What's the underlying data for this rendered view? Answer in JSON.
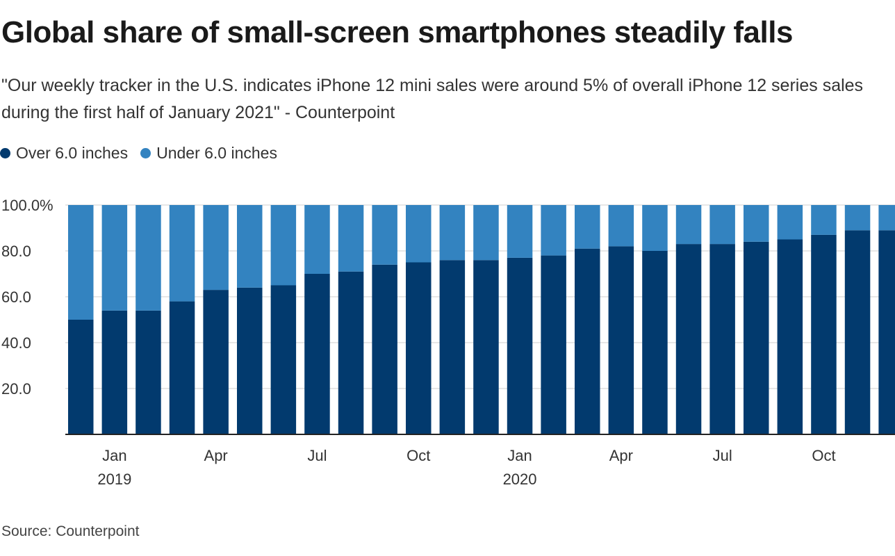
{
  "chart_data": {
    "type": "bar",
    "stacked": true,
    "title": "Global share of small-screen smartphones steadily falls",
    "subtitle": "\"Our weekly tracker in the U.S. indicates iPhone 12 mini sales were around 5% of overall iPhone 12 series sales during the first half of January 2021\" - Counterpoint",
    "source": "Source: Counterpoint",
    "ylim": [
      0,
      100
    ],
    "y_ticks": [
      20,
      40,
      60,
      80,
      100
    ],
    "y_tick_labels": [
      "20.0",
      "40.0",
      "60.0",
      "80.0",
      "100.0%"
    ],
    "grid": true,
    "legend_position": "top-left",
    "categories": [
      "Dec 2018",
      "Jan 2019",
      "Feb 2019",
      "Mar 2019",
      "Apr 2019",
      "May 2019",
      "Jun 2019",
      "Jul 2019",
      "Aug 2019",
      "Sep 2019",
      "Oct 2019",
      "Nov 2019",
      "Dec 2019",
      "Jan 2020",
      "Feb 2020",
      "Mar 2020",
      "Apr 2020",
      "May 2020",
      "Jun 2020",
      "Jul 2020",
      "Aug 2020",
      "Sep 2020",
      "Oct 2020",
      "Nov 2020",
      "Dec 2020"
    ],
    "series": [
      {
        "name": "Over 6.0 inches",
        "color": "#023a6e",
        "values": [
          50,
          54,
          54,
          58,
          63,
          64,
          65,
          70,
          71,
          74,
          75,
          76,
          76,
          77,
          78,
          81,
          82,
          80,
          83,
          83,
          84,
          85,
          87,
          89,
          89
        ]
      },
      {
        "name": "Under 6.0 inches",
        "color": "#3383c0",
        "values": [
          50,
          46,
          46,
          42,
          37,
          36,
          35,
          30,
          29,
          26,
          25,
          24,
          24,
          23,
          22,
          19,
          18,
          20,
          17,
          17,
          16,
          15,
          13,
          11,
          11
        ]
      }
    ],
    "x_ticks": [
      {
        "index": 1,
        "label": "Jan",
        "year": "2019"
      },
      {
        "index": 4,
        "label": "Apr",
        "year": ""
      },
      {
        "index": 7,
        "label": "Jul",
        "year": ""
      },
      {
        "index": 10,
        "label": "Oct",
        "year": ""
      },
      {
        "index": 13,
        "label": "Jan",
        "year": "2020"
      },
      {
        "index": 16,
        "label": "Apr",
        "year": ""
      },
      {
        "index": 19,
        "label": "Jul",
        "year": ""
      },
      {
        "index": 22,
        "label": "Oct",
        "year": ""
      }
    ]
  }
}
